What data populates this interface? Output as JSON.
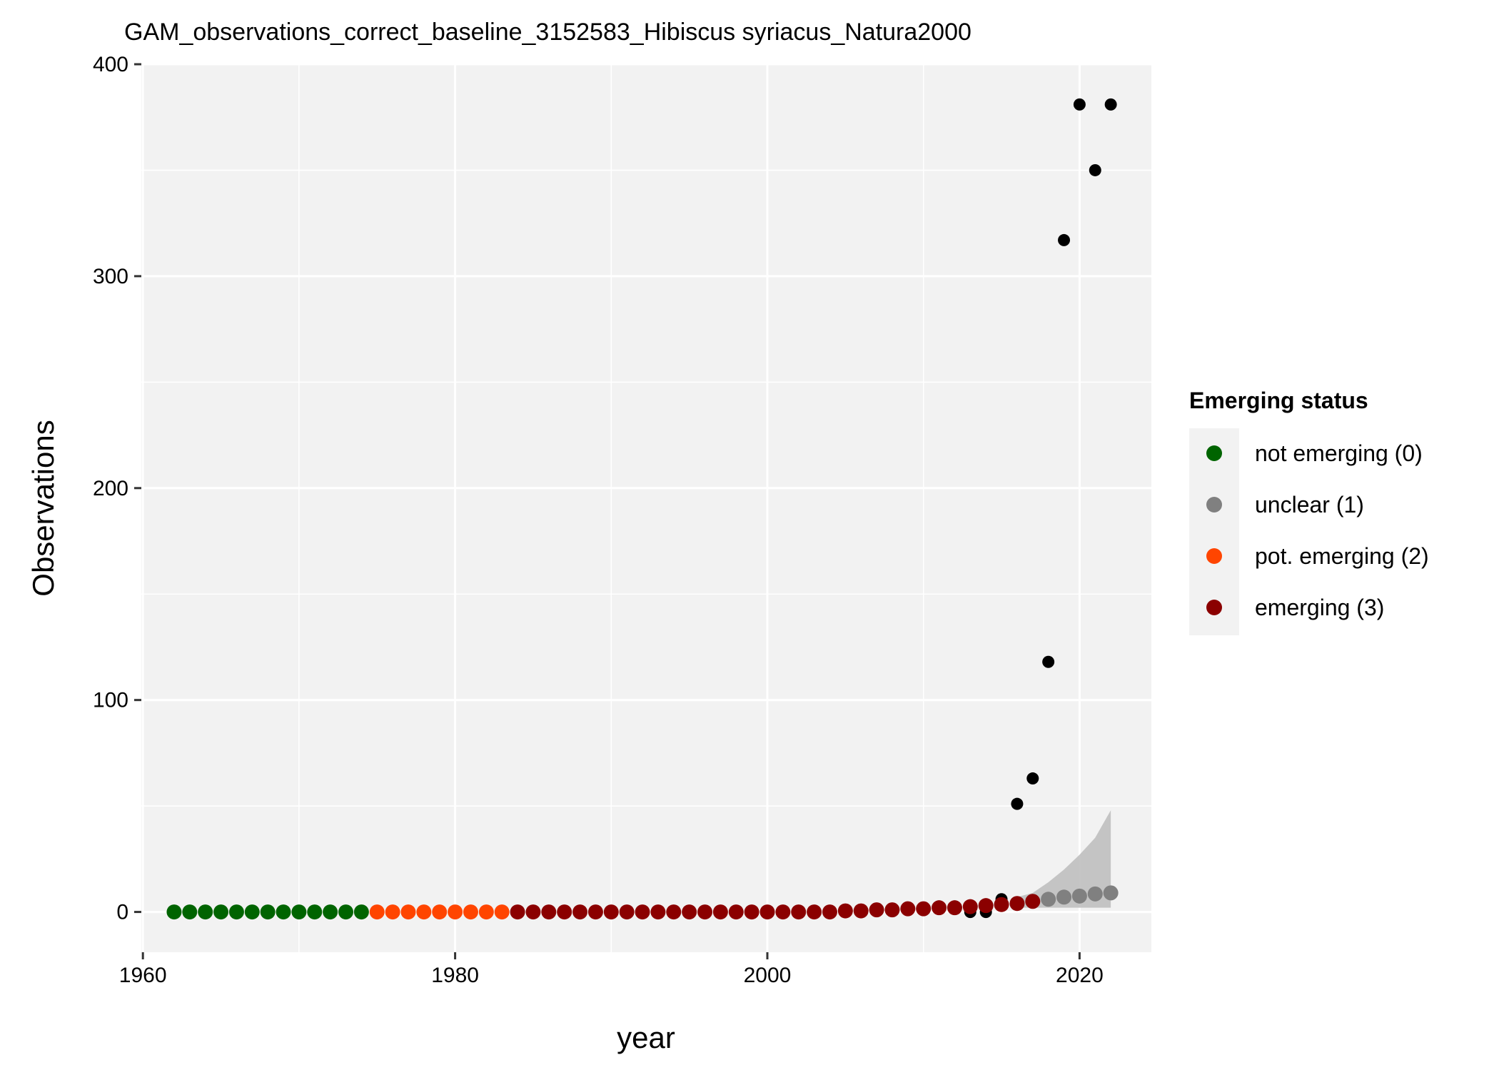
{
  "chart_data": {
    "type": "scatter",
    "title": "GAM_observations_correct_baseline_3152583_Hibiscus syriacus_Natura2000",
    "xlabel": "year",
    "ylabel": "Observations",
    "xlim": [
      1959.9,
      2024.6
    ],
    "ylim": [
      -19,
      400
    ],
    "x_ticks": [
      1960,
      1980,
      2000,
      2020
    ],
    "y_ticks": [
      0,
      100,
      200,
      300,
      400
    ],
    "grid": true,
    "legend_position": "right",
    "legend": {
      "title": "Emerging status",
      "entries": [
        {
          "label": "not emerging (0)",
          "color": "#006400"
        },
        {
          "label": "unclear (1)",
          "color": "#808080"
        },
        {
          "label": "pot. emerging (2)",
          "color": "#FF4500"
        },
        {
          "label": "emerging (3)",
          "color": "#8B0000"
        }
      ]
    },
    "colors": {
      "panel_background": "#f2f2f2",
      "grid": "#ffffff",
      "observed_points": "#000000",
      "ribbon": "#bfbfbf"
    },
    "observed": {
      "x": [
        2013,
        2014,
        2015,
        2016,
        2017,
        2018,
        2019,
        2020,
        2021,
        2022
      ],
      "y": [
        0,
        0,
        6,
        51,
        63,
        118,
        317,
        381,
        350,
        381
      ]
    },
    "ribbon": {
      "x": [
        2016,
        2017,
        2018,
        2019,
        2020,
        2021,
        2022
      ],
      "lower": [
        2,
        2,
        2,
        2,
        2,
        2,
        2
      ],
      "upper": [
        7,
        9,
        14,
        20,
        27,
        35,
        48
      ]
    },
    "series": [
      {
        "name": "not emerging (0)",
        "color": "#006400",
        "x": [
          1962,
          1963,
          1964,
          1965,
          1966,
          1967,
          1968,
          1969,
          1970,
          1971,
          1972,
          1973,
          1974
        ],
        "y": [
          0,
          0,
          0,
          0,
          0,
          0,
          0,
          0,
          0,
          0,
          0,
          0,
          0
        ]
      },
      {
        "name": "pot. emerging (2)",
        "color": "#FF4500",
        "x": [
          1975,
          1976,
          1977,
          1978,
          1979,
          1980,
          1981,
          1982,
          1983
        ],
        "y": [
          0,
          0,
          0,
          0,
          0,
          0,
          0,
          0,
          0
        ]
      },
      {
        "name": "emerging (3)",
        "color": "#8B0000",
        "x": [
          1984,
          1985,
          1986,
          1987,
          1988,
          1989,
          1990,
          1991,
          1992,
          1993,
          1994,
          1995,
          1996,
          1997,
          1998,
          1999,
          2000,
          2001,
          2002,
          2003,
          2004,
          2005,
          2006,
          2007,
          2008,
          2009,
          2010,
          2011,
          2012,
          2013,
          2014,
          2015,
          2016,
          2017
        ],
        "y": [
          0,
          0,
          0,
          0,
          0,
          0,
          0,
          0,
          0,
          0,
          0,
          0,
          0,
          0,
          0,
          0,
          0,
          0,
          0,
          0,
          0,
          0.5,
          0.5,
          1,
          1,
          1.5,
          1.5,
          2,
          2,
          2.5,
          3,
          3.5,
          4,
          5
        ]
      },
      {
        "name": "unclear (1)",
        "color": "#808080",
        "x": [
          2018,
          2019,
          2020,
          2021,
          2022
        ],
        "y": [
          6,
          7,
          7.5,
          8.5,
          9
        ]
      }
    ]
  }
}
